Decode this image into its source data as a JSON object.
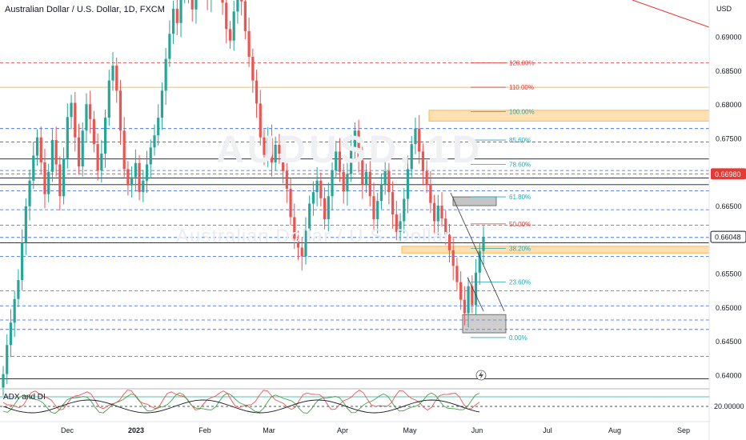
{
  "header": {
    "title": "Australian Dollar / U.S. Dollar, 1D, FXCM",
    "currency": "USD"
  },
  "watermark": {
    "symbol": "AUDUSD, 1D",
    "name": "Australian Dollar / U.S. Dollar"
  },
  "indicator": {
    "title": "ADX and DI",
    "axis_value": "20.00000"
  },
  "colors": {
    "up": "#26a69a",
    "down": "#ef5350",
    "blue_dash": "#2962ff",
    "red_dash": "#e53935",
    "orange_zone": "#ffb74d",
    "dark_line": "#131722",
    "current_price_bg": "#ffffff"
  },
  "chart_data": {
    "type": "candlestick",
    "ylim": [
      0.6385,
      0.6955
    ],
    "price_ticks": [
      "0.69000",
      "0.68500",
      "0.68000",
      "0.67500",
      "0.67000",
      "0.66500",
      "0.66000",
      "0.65500",
      "0.65000",
      "0.64500",
      "0.64000"
    ],
    "price_tick_values": [
      0.69,
      0.685,
      0.68,
      0.675,
      0.67,
      0.665,
      0.66,
      0.655,
      0.65,
      0.645,
      0.64
    ],
    "price_labels": [
      {
        "text": "0.66980",
        "value": 0.6698,
        "style": "red"
      },
      {
        "text": "0.66048",
        "value": 0.66048,
        "style": "boxed"
      }
    ],
    "time_labels": [
      "Dec",
      "2023",
      "Feb",
      "Mar",
      "Apr",
      "May",
      "Jun",
      "Jul",
      "Aug",
      "Sep"
    ],
    "fib_levels": [
      {
        "label": "120.00%",
        "value": 0.6862,
        "color": "red"
      },
      {
        "label": "110.00%",
        "value": 0.6826,
        "color": "red"
      },
      {
        "label": "100.00%",
        "value": 0.679,
        "color": "teal"
      },
      {
        "label": "85.60%",
        "value": 0.6748,
        "color": "teal"
      },
      {
        "label": "78.60%",
        "value": 0.6712,
        "color": "teal"
      },
      {
        "label": "61.80%",
        "value": 0.6664,
        "color": "teal"
      },
      {
        "label": "50.00%",
        "value": 0.6624,
        "color": "red"
      },
      {
        "label": "38.20%",
        "value": 0.6588,
        "color": "teal"
      },
      {
        "label": "23.60%",
        "value": 0.6538,
        "color": "teal"
      },
      {
        "label": "0.00%",
        "value": 0.6456,
        "color": "teal"
      }
    ],
    "horizontal_lines": [
      {
        "value": 0.6862,
        "style": "red-dash"
      },
      {
        "value": 0.6826,
        "style": "orange"
      },
      {
        "value": 0.6765,
        "style": "blue-dash"
      },
      {
        "value": 0.6745,
        "style": "blue-dash"
      },
      {
        "value": 0.672,
        "style": "dark"
      },
      {
        "value": 0.6703,
        "style": "blue-dash"
      },
      {
        "value": 0.6698,
        "style": "red-dash"
      },
      {
        "value": 0.6692,
        "style": "dark"
      },
      {
        "value": 0.6682,
        "style": "dark"
      },
      {
        "value": 0.6673,
        "style": "blue-dash"
      },
      {
        "value": 0.6645,
        "style": "blue-dash"
      },
      {
        "value": 0.6622,
        "style": "blue-dash"
      },
      {
        "value": 0.6604,
        "style": "blue-dash"
      },
      {
        "value": 0.6596,
        "style": "dark"
      },
      {
        "value": 0.6576,
        "style": "blue-dash"
      },
      {
        "value": 0.6525,
        "style": "red-dash"
      },
      {
        "value": 0.6503,
        "style": "blue-dash"
      },
      {
        "value": 0.6482,
        "style": "blue-dash"
      },
      {
        "value": 0.6468,
        "style": "blue-dash"
      },
      {
        "value": 0.6428,
        "style": "blue-dash"
      },
      {
        "value": 0.6395,
        "style": "dark"
      }
    ],
    "candles_close": [
      0.6402,
      0.6445,
      0.6478,
      0.6513,
      0.6541,
      0.6596,
      0.665,
      0.6688,
      0.6725,
      0.6752,
      0.6715,
      0.6668,
      0.6701,
      0.6748,
      0.6712,
      0.6665,
      0.6721,
      0.6782,
      0.6803,
      0.6752,
      0.6709,
      0.6762,
      0.6801,
      0.6779,
      0.6742,
      0.6703,
      0.6728,
      0.6781,
      0.6836,
      0.6858,
      0.6821,
      0.6762,
      0.6705,
      0.6681,
      0.6693,
      0.6714,
      0.6671,
      0.6688,
      0.6712,
      0.6737,
      0.6755,
      0.6781,
      0.6821,
      0.6868,
      0.6905,
      0.6942,
      0.6921,
      0.6962,
      0.6988,
      0.6965,
      0.6941,
      0.6978,
      0.7011,
      0.6995,
      0.6958,
      0.6979,
      0.7012,
      0.7005,
      0.6951,
      0.6912,
      0.6895,
      0.6938,
      0.6975,
      0.6953,
      0.6909,
      0.6871,
      0.6836,
      0.6802,
      0.6752,
      0.6726,
      0.6751,
      0.6715,
      0.6741,
      0.6728,
      0.6702,
      0.6676,
      0.6634,
      0.6602,
      0.6589,
      0.6576,
      0.6614,
      0.6654,
      0.6671,
      0.6688,
      0.6662,
      0.6631,
      0.6665,
      0.6703,
      0.6731,
      0.6701,
      0.6672,
      0.6698,
      0.6735,
      0.6762,
      0.6718,
      0.6682,
      0.6701,
      0.6665,
      0.6631,
      0.6658,
      0.6682,
      0.6702,
      0.6671,
      0.6638,
      0.6612,
      0.6628,
      0.6661,
      0.6705,
      0.6742,
      0.6765,
      0.6731,
      0.6702,
      0.6682,
      0.6655,
      0.6628,
      0.6651,
      0.6632,
      0.6608,
      0.6585,
      0.6562,
      0.6538,
      0.6512,
      0.6492,
      0.6532,
      0.6504,
      0.6552,
      0.6584,
      0.6605
    ]
  }
}
